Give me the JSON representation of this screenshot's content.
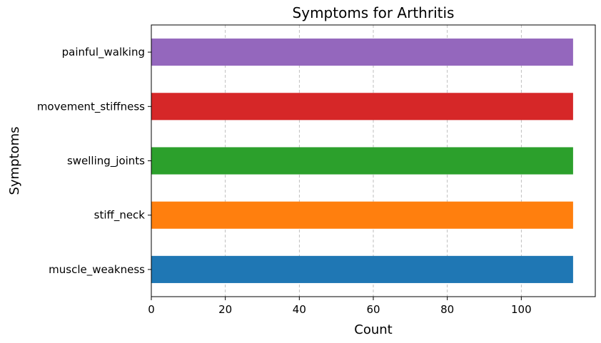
{
  "chart_data": {
    "type": "bar",
    "orientation": "horizontal",
    "title": "Symptoms for Arthritis",
    "xlabel": "Count",
    "ylabel": "Symptoms",
    "categories": [
      "muscle_weakness",
      "stiff_neck",
      "swelling_joints",
      "movement_stiffness",
      "painful_walking"
    ],
    "values": [
      114,
      114,
      114,
      114,
      114
    ],
    "colors": [
      "#1f77b4",
      "#ff7f0e",
      "#2ca02c",
      "#d62728",
      "#9467bd"
    ],
    "xlim": [
      0,
      120
    ],
    "xticks": [
      0,
      20,
      40,
      60,
      80,
      100
    ],
    "grid": "x-axis dashed",
    "legend": "none"
  }
}
